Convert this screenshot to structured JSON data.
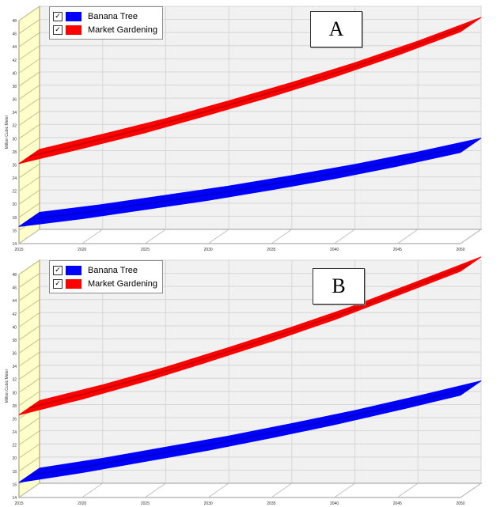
{
  "chart_data": [
    {
      "type": "line",
      "panel_label": "A",
      "ylabel": "Million Cubic Meter",
      "x": [
        2015,
        2020,
        2025,
        2030,
        2035,
        2040,
        2045,
        2050
      ],
      "y_ticks": [
        14,
        16,
        18,
        20,
        22,
        24,
        26,
        28,
        30,
        32,
        34,
        36,
        38,
        40,
        42,
        44,
        46,
        48
      ],
      "ylim": [
        14,
        48
      ],
      "series": [
        {
          "name": "Banana Tree",
          "color": "#0000ff",
          "values": [
            16.6,
            17.8,
            19.2,
            20.6,
            22.2,
            23.9,
            25.8,
            27.9
          ]
        },
        {
          "name": "Market Gardening",
          "color": "#ff0000",
          "values": [
            26.2,
            28.5,
            30.9,
            33.6,
            36.4,
            39.4,
            42.7,
            46.3
          ]
        }
      ],
      "grid": true,
      "legend_position": "top-left"
    },
    {
      "type": "line",
      "panel_label": "B",
      "ylabel": "Million Cubic Meter",
      "x": [
        2015,
        2020,
        2025,
        2030,
        2035,
        2040,
        2045,
        2050
      ],
      "y_ticks": [
        14,
        16,
        18,
        20,
        22,
        24,
        26,
        28,
        30,
        32,
        34,
        36,
        38,
        40,
        42,
        44,
        46,
        48
      ],
      "ylim": [
        14,
        48
      ],
      "series": [
        {
          "name": "Banana Tree",
          "color": "#0000ff",
          "values": [
            16.3,
            17.8,
            19.5,
            21.2,
            23.1,
            25.1,
            27.3,
            29.6
          ]
        },
        {
          "name": "Market Gardening",
          "color": "#ff0000",
          "values": [
            26.6,
            29.0,
            31.7,
            34.7,
            37.8,
            41.1,
            44.8,
            48.5
          ]
        }
      ],
      "grid": true,
      "legend_position": "top-left"
    }
  ]
}
